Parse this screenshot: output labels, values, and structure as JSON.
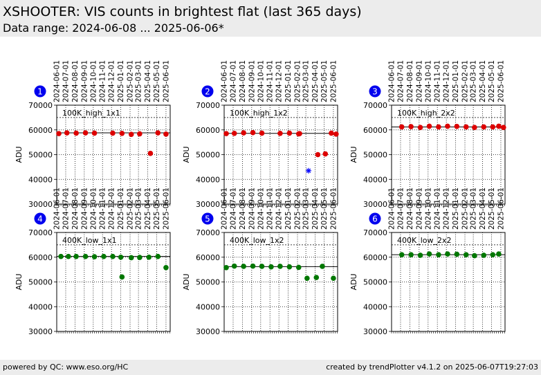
{
  "header": {
    "title": "XSHOOTER: VIS counts in brightest flat (last 365 days)",
    "subtitle": "Data range: 2024-06-08 ... 2025-06-06*"
  },
  "footer": {
    "left": "powered by QC: www.eso.org/HC",
    "right": "created by trendPlotter v4.1.2 on 2025-06-07T19:27:03"
  },
  "colors": {
    "high": "#dd0000",
    "low": "#007700",
    "outlier": "#0000ff",
    "badge": "#0000ee"
  },
  "chart_data": [
    {
      "type": "scatter",
      "panel": "1",
      "label": "100K_high_1x1",
      "color": "#dd0000",
      "ylabel": "ADU",
      "ylim": [
        30000,
        70000
      ],
      "yticks": [
        30000,
        40000,
        50000,
        60000,
        70000
      ],
      "xlim": [
        "2024-06-01",
        "2025-06-15"
      ],
      "xticks": [
        "2024-06-01",
        "2024-07-01",
        "2024-08-01",
        "2024-09-01",
        "2024-10-01",
        "2024-11-01",
        "2024-12-01",
        "2025-01-01",
        "2025-02-01",
        "2025-03-01",
        "2025-04-01",
        "2025-05-01",
        "2025-06-01"
      ],
      "ref_line": 58800,
      "upper_line": 65000,
      "grid": true,
      "points": [
        {
          "x": "2024-06-08",
          "y": 58500
        },
        {
          "x": "2024-07-05",
          "y": 58800
        },
        {
          "x": "2024-08-05",
          "y": 58700
        },
        {
          "x": "2024-09-05",
          "y": 58800
        },
        {
          "x": "2024-10-05",
          "y": 58700
        },
        {
          "x": "2024-12-05",
          "y": 58700
        },
        {
          "x": "2025-01-05",
          "y": 58600
        },
        {
          "x": "2025-02-05",
          "y": 58200
        },
        {
          "x": "2025-03-05",
          "y": 58400
        },
        {
          "x": "2025-04-10",
          "y": 50500
        },
        {
          "x": "2025-05-05",
          "y": 58800
        },
        {
          "x": "2025-06-01",
          "y": 58300
        }
      ],
      "outliers": []
    },
    {
      "type": "scatter",
      "panel": "2",
      "label": "100K_high_1x2",
      "color": "#dd0000",
      "ylabel": "ADU",
      "ylim": [
        30000,
        70000
      ],
      "yticks": [
        30000,
        40000,
        50000,
        60000,
        70000
      ],
      "xlim": [
        "2024-06-01",
        "2025-06-15"
      ],
      "xticks": [
        "2024-06-01",
        "2024-07-01",
        "2024-08-01",
        "2024-09-01",
        "2024-10-01",
        "2024-11-01",
        "2024-12-01",
        "2025-01-01",
        "2025-02-01",
        "2025-03-01",
        "2025-04-01",
        "2025-05-01",
        "2025-06-01"
      ],
      "ref_line": 58600,
      "upper_line": 65000,
      "grid": true,
      "points": [
        {
          "x": "2024-06-08",
          "y": 58500
        },
        {
          "x": "2024-07-05",
          "y": 58600
        },
        {
          "x": "2024-08-05",
          "y": 58800
        },
        {
          "x": "2024-09-05",
          "y": 58900
        },
        {
          "x": "2024-10-05",
          "y": 58700
        },
        {
          "x": "2024-12-05",
          "y": 58600
        },
        {
          "x": "2025-01-05",
          "y": 58700
        },
        {
          "x": "2025-02-05",
          "y": 58400
        },
        {
          "x": "2025-02-08",
          "y": 58500
        },
        {
          "x": "2025-04-10",
          "y": 50000
        },
        {
          "x": "2025-05-05",
          "y": 50300
        },
        {
          "x": "2025-05-25",
          "y": 58700
        },
        {
          "x": "2025-06-10",
          "y": 58300
        }
      ],
      "outliers": [
        {
          "x": "2025-03-10",
          "y": 43500
        }
      ]
    },
    {
      "type": "scatter",
      "panel": "3",
      "label": "100K_high_2x2",
      "color": "#dd0000",
      "ylabel": "ADU",
      "ylim": [
        30000,
        70000
      ],
      "yticks": [
        30000,
        40000,
        50000,
        60000,
        70000
      ],
      "xlim": [
        "2024-06-01",
        "2025-06-15"
      ],
      "xticks": [
        "2024-06-01",
        "2024-07-01",
        "2024-08-01",
        "2024-09-01",
        "2024-10-01",
        "2024-11-01",
        "2024-12-01",
        "2025-01-01",
        "2025-02-01",
        "2025-03-01",
        "2025-04-01",
        "2025-05-01",
        "2025-06-01"
      ],
      "ref_line": 61200,
      "upper_line": 65000,
      "grid": true,
      "points": [
        {
          "x": "2024-07-05",
          "y": 61200
        },
        {
          "x": "2024-08-05",
          "y": 61300
        },
        {
          "x": "2024-09-05",
          "y": 61000
        },
        {
          "x": "2024-10-05",
          "y": 61500
        },
        {
          "x": "2024-11-05",
          "y": 61200
        },
        {
          "x": "2024-12-05",
          "y": 61500
        },
        {
          "x": "2025-01-05",
          "y": 61400
        },
        {
          "x": "2025-02-05",
          "y": 61200
        },
        {
          "x": "2025-03-05",
          "y": 61000
        },
        {
          "x": "2025-04-05",
          "y": 61200
        },
        {
          "x": "2025-05-05",
          "y": 61200
        },
        {
          "x": "2025-05-25",
          "y": 61500
        },
        {
          "x": "2025-06-10",
          "y": 61000
        }
      ],
      "outliers": []
    },
    {
      "type": "scatter",
      "panel": "4",
      "label": "400K_low_1x1",
      "color": "#007700",
      "ylabel": "ADU",
      "ylim": [
        30000,
        70000
      ],
      "yticks": [
        30000,
        40000,
        50000,
        60000,
        70000
      ],
      "xlim": [
        "2024-06-01",
        "2025-06-15"
      ],
      "xticks": [
        "2024-06-01",
        "2024-07-01",
        "2024-08-01",
        "2024-09-01",
        "2024-10-01",
        "2024-11-01",
        "2024-12-01",
        "2025-01-01",
        "2025-02-01",
        "2025-03-01",
        "2025-04-01",
        "2025-05-01",
        "2025-06-01"
      ],
      "ref_line": 60300,
      "upper_line": 65000,
      "grid": true,
      "points": [
        {
          "x": "2024-06-15",
          "y": 60300
        },
        {
          "x": "2024-07-10",
          "y": 60300
        },
        {
          "x": "2024-08-05",
          "y": 60300
        },
        {
          "x": "2024-09-05",
          "y": 60300
        },
        {
          "x": "2024-10-05",
          "y": 60200
        },
        {
          "x": "2024-11-05",
          "y": 60300
        },
        {
          "x": "2024-12-05",
          "y": 60300
        },
        {
          "x": "2025-01-01",
          "y": 60000
        },
        {
          "x": "2025-01-05",
          "y": 52000
        },
        {
          "x": "2025-02-05",
          "y": 59800
        },
        {
          "x": "2025-03-05",
          "y": 59900
        },
        {
          "x": "2025-04-05",
          "y": 60000
        },
        {
          "x": "2025-05-05",
          "y": 60300
        },
        {
          "x": "2025-06-01",
          "y": 55800
        }
      ],
      "outliers": []
    },
    {
      "type": "scatter",
      "panel": "5",
      "label": "400K_low_1x2",
      "color": "#007700",
      "ylabel": "ADU",
      "ylim": [
        30000,
        70000
      ],
      "yticks": [
        30000,
        40000,
        50000,
        60000,
        70000
      ],
      "xlim": [
        "2024-06-01",
        "2025-06-15"
      ],
      "xticks": [
        "2024-06-01",
        "2024-07-01",
        "2024-08-01",
        "2024-09-01",
        "2024-10-01",
        "2024-11-01",
        "2024-12-01",
        "2025-01-01",
        "2025-02-01",
        "2025-03-01",
        "2025-04-01",
        "2025-05-01",
        "2025-06-01"
      ],
      "ref_line": 56200,
      "upper_line": 65000,
      "grid": true,
      "points": [
        {
          "x": "2024-06-08",
          "y": 55800
        },
        {
          "x": "2024-07-05",
          "y": 56400
        },
        {
          "x": "2024-08-05",
          "y": 56300
        },
        {
          "x": "2024-09-05",
          "y": 56400
        },
        {
          "x": "2024-10-05",
          "y": 56300
        },
        {
          "x": "2024-11-05",
          "y": 56100
        },
        {
          "x": "2024-12-05",
          "y": 56300
        },
        {
          "x": "2025-01-05",
          "y": 56100
        },
        {
          "x": "2025-02-05",
          "y": 55900
        },
        {
          "x": "2025-03-05",
          "y": 51500
        },
        {
          "x": "2025-04-05",
          "y": 51800
        },
        {
          "x": "2025-04-25",
          "y": 56300
        },
        {
          "x": "2025-06-01",
          "y": 51500
        }
      ],
      "outliers": []
    },
    {
      "type": "scatter",
      "panel": "6",
      "label": "400K_low_2x2",
      "color": "#007700",
      "ylabel": "ADU",
      "ylim": [
        30000,
        70000
      ],
      "yticks": [
        30000,
        40000,
        50000,
        60000,
        70000
      ],
      "xlim": [
        "2024-06-01",
        "2025-06-15"
      ],
      "xticks": [
        "2024-06-01",
        "2024-07-01",
        "2024-08-01",
        "2024-09-01",
        "2024-10-01",
        "2024-11-01",
        "2024-12-01",
        "2025-01-01",
        "2025-02-01",
        "2025-03-01",
        "2025-04-01",
        "2025-05-01",
        "2025-06-01"
      ],
      "ref_line": 61000,
      "upper_line": 65000,
      "grid": true,
      "points": [
        {
          "x": "2024-07-05",
          "y": 61000
        },
        {
          "x": "2024-08-05",
          "y": 61000
        },
        {
          "x": "2024-09-05",
          "y": 60800
        },
        {
          "x": "2024-10-05",
          "y": 61300
        },
        {
          "x": "2024-11-05",
          "y": 61000
        },
        {
          "x": "2024-12-05",
          "y": 61300
        },
        {
          "x": "2025-01-05",
          "y": 61200
        },
        {
          "x": "2025-02-05",
          "y": 61000
        },
        {
          "x": "2025-03-05",
          "y": 60600
        },
        {
          "x": "2025-04-05",
          "y": 60800
        },
        {
          "x": "2025-05-05",
          "y": 61000
        },
        {
          "x": "2025-05-25",
          "y": 61300
        }
      ],
      "outliers": []
    }
  ]
}
